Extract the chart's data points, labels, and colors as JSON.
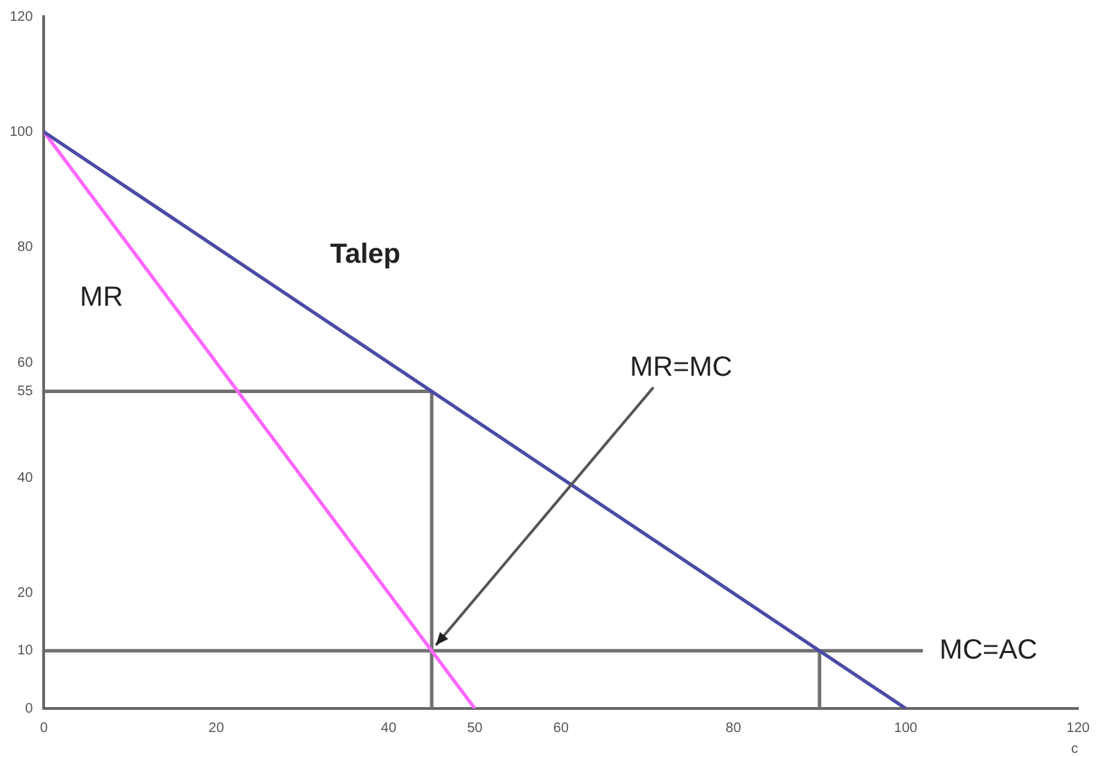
{
  "chart_data": {
    "type": "line",
    "xlabel": "c",
    "xlim": [
      0,
      120
    ],
    "xticks": [
      0,
      20,
      40,
      50,
      60,
      80,
      100,
      120
    ],
    "ylim": [
      0,
      120
    ],
    "yticks": [
      0,
      {
        "value": 10,
        "label": "10"
      },
      20,
      40,
      55,
      60,
      80,
      100,
      120
    ],
    "series": [
      {
        "name": "Talep",
        "color": "#4b4ba6",
        "x": [
          0,
          100
        ],
        "values": [
          100,
          0
        ]
      },
      {
        "name": "MR",
        "color": "#ff66ff",
        "x": [
          0,
          50
        ],
        "values": [
          100,
          0
        ]
      },
      {
        "name": "MC=AC",
        "color": "#707070",
        "x": [
          0,
          102
        ],
        "values": [
          10,
          10
        ]
      },
      {
        "color": "#707070",
        "x": [
          0,
          45
        ],
        "values": [
          55,
          55
        ]
      },
      {
        "color": "#707070",
        "x": [
          45,
          45
        ],
        "values": [
          55,
          0
        ]
      },
      {
        "color": "#707070",
        "x": [
          90,
          90
        ],
        "values": [
          10,
          0
        ]
      }
    ],
    "annotations": [
      {
        "text": "MR=MC",
        "x": 45,
        "y": 10
      }
    ],
    "grid": false,
    "legend": false,
    "marker": "none",
    "line_style": "solid"
  }
}
